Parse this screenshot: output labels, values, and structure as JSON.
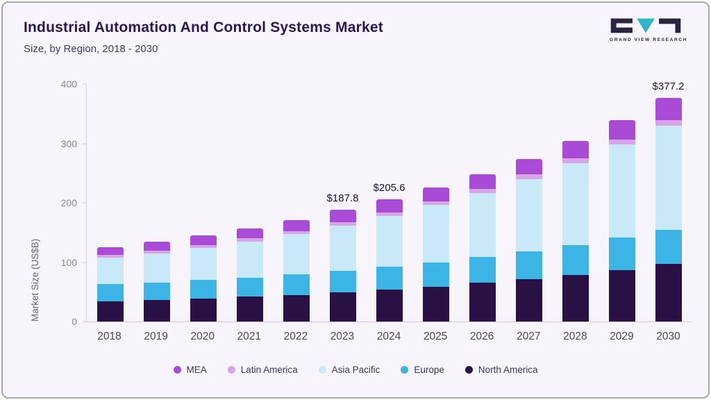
{
  "header": {
    "title": "Industrial Automation And Control Systems Market",
    "subtitle": "Size, by Region, 2018 - 2030"
  },
  "logo": {
    "text": "GRAND VIEW RESEARCH",
    "dark_color": "#2a2440",
    "teal_color": "#2fb5c8"
  },
  "chart_data": {
    "type": "bar",
    "stacked": true,
    "title": "Industrial Automation And Control Systems Market Size, by Region, 2018 - 2030",
    "ylabel": "Market Size (US$B)",
    "ylim": [
      0,
      400
    ],
    "yticks": [
      0,
      100,
      200,
      300,
      400
    ],
    "grid": false,
    "legend_position": "bottom",
    "categories": [
      "2018",
      "2019",
      "2020",
      "2021",
      "2022",
      "2023",
      "2024",
      "2025",
      "2026",
      "2027",
      "2028",
      "2029",
      "2030"
    ],
    "series": [
      {
        "name": "North America",
        "color": "#2a1145",
        "values": [
          34,
          36,
          39,
          42,
          45,
          49,
          54,
          59,
          65,
          71,
          78,
          87,
          97
        ]
      },
      {
        "name": "Europe",
        "color": "#3cb4e5",
        "values": [
          29,
          30,
          31,
          32,
          34,
          36,
          38,
          41,
          44,
          47,
          51,
          54,
          57
        ]
      },
      {
        "name": "Asia Pacific",
        "color": "#c9e9f8",
        "values": [
          45,
          49,
          54,
          61,
          68,
          77,
          86,
          96,
          108,
          122,
          138,
          157,
          176
        ]
      },
      {
        "name": "Latin America",
        "color": "#d8a6e8",
        "values": [
          4.3,
          4.5,
          4.8,
          5.1,
          5.5,
          5.8,
          6.2,
          6.6,
          7,
          7.5,
          8,
          8.6,
          9.2
        ]
      },
      {
        "name": "MEA",
        "color": "#a94bd6",
        "values": [
          13,
          14.7,
          15.7,
          16.7,
          17.8,
          20,
          21.4,
          22.8,
          23.9,
          26.5,
          29.5,
          32.2,
          38
        ]
      }
    ],
    "point_labels": {
      "2023": "$187.8",
      "2024": "$205.6",
      "2030": "$377.2"
    },
    "legend": [
      {
        "label": "MEA",
        "color": "#a94bd6"
      },
      {
        "label": "Latin America",
        "color": "#d8a6e8"
      },
      {
        "label": "Asia Pacific",
        "color": "#c9e9f8"
      },
      {
        "label": "Europe",
        "color": "#3cb4e5"
      },
      {
        "label": "North America",
        "color": "#2a1145"
      }
    ]
  }
}
